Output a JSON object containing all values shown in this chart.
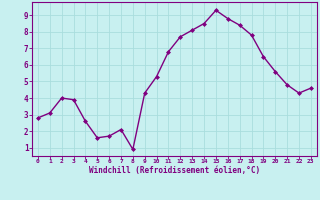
{
  "x": [
    0,
    1,
    2,
    3,
    4,
    5,
    6,
    7,
    8,
    9,
    10,
    11,
    12,
    13,
    14,
    15,
    16,
    17,
    18,
    19,
    20,
    21,
    22,
    23
  ],
  "y": [
    2.8,
    3.1,
    4.0,
    3.9,
    2.6,
    1.6,
    1.7,
    2.1,
    0.9,
    4.3,
    5.3,
    6.8,
    7.7,
    8.1,
    8.5,
    9.3,
    8.8,
    8.4,
    7.8,
    6.5,
    5.6,
    4.8,
    4.3,
    4.6
  ],
  "line_color": "#800080",
  "marker": "D",
  "marker_size": 2.0,
  "bg_color": "#c8f0f0",
  "grid_color": "#aadddd",
  "xlabel": "Windchill (Refroidissement éolien,°C)",
  "xlabel_color": "#800080",
  "tick_color": "#800080",
  "ylim": [
    0.5,
    9.8
  ],
  "xlim": [
    -0.5,
    23.5
  ],
  "yticks": [
    1,
    2,
    3,
    4,
    5,
    6,
    7,
    8,
    9
  ],
  "xticks": [
    0,
    1,
    2,
    3,
    4,
    5,
    6,
    7,
    8,
    9,
    10,
    11,
    12,
    13,
    14,
    15,
    16,
    17,
    18,
    19,
    20,
    21,
    22,
    23
  ],
  "line_width": 1.0,
  "spine_color": "#800080"
}
